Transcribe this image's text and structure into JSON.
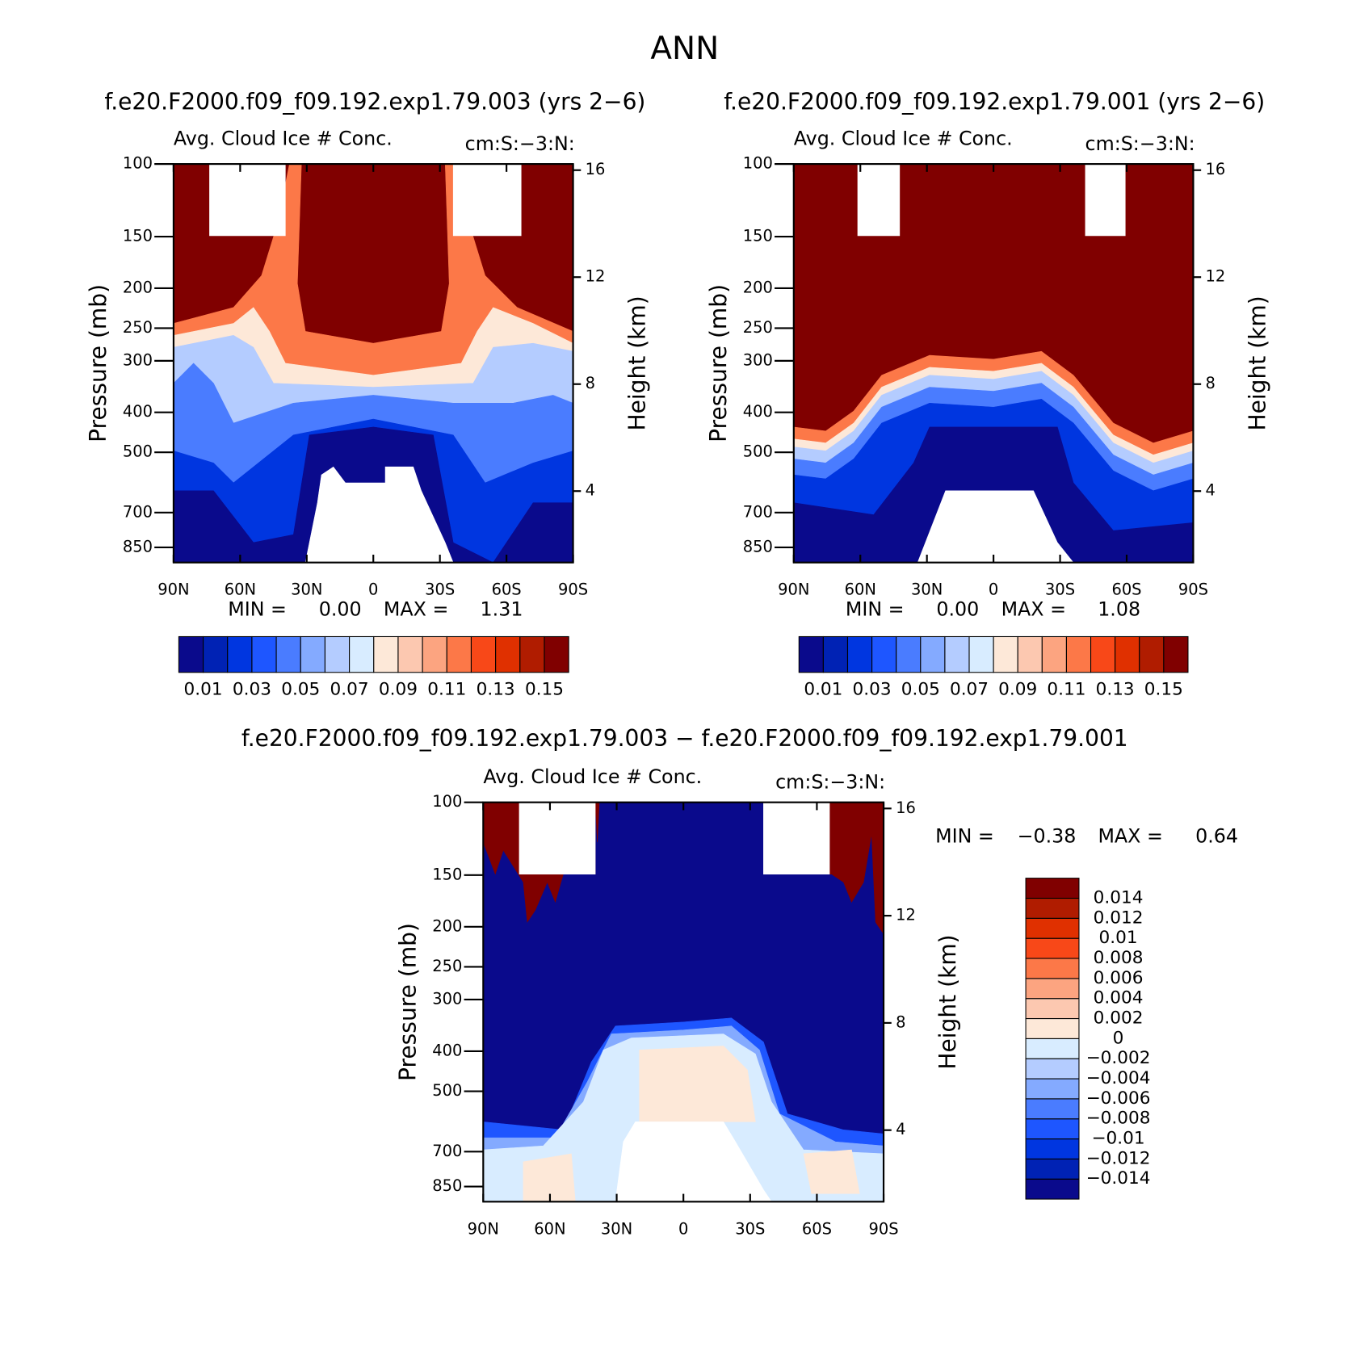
{
  "title": "ANN",
  "chart_data": [
    {
      "type": "contour",
      "subtitle": "f.e20.F2000.f09_f09.192.exp1.79.003 (yrs 2−6)",
      "title": "Avg. Cloud Ice # Conc.",
      "units": "cm:S:−3:N:",
      "ylabel": "Pressure (mb)",
      "y2label": "Height (km)",
      "xlim": [
        90,
        -90
      ],
      "xticks": [
        {
          "value": 90,
          "label": "90N"
        },
        {
          "value": 60,
          "label": "60N"
        },
        {
          "value": 30,
          "label": "30N"
        },
        0,
        {
          "value": -30,
          "label": "30S"
        },
        {
          "value": -60,
          "label": "60S"
        },
        {
          "value": -90,
          "label": "90S"
        }
      ],
      "ylim": [
        100,
        925
      ],
      "ylog": true,
      "yticks": [
        100,
        150,
        200,
        250,
        300,
        400,
        500,
        700,
        850
      ],
      "y2lim": [
        1.33,
        16.23
      ],
      "y2ticks": [
        4,
        8,
        12,
        16
      ],
      "stats": [
        {
          "name": "MIN =",
          "value": 0,
          "label": "0.00"
        },
        {
          "name": "MAX =",
          "value": 1.31
        }
      ],
      "colorbar": {
        "orientation": "horizontal",
        "lim": [
          0,
          0.16
        ],
        "ticks": [
          0.01,
          0.03,
          0.05,
          0.07,
          0.09,
          0.11,
          0.13,
          0.15
        ],
        "colors": [
          "#0a0a8c",
          "#0022b4",
          "#0036e0",
          "#1e56ff",
          "#4a7cff",
          "#84aaff",
          "#b4ccff",
          "#d8ecff",
          "#fde8d8",
          "#fcc8b0",
          "#fca480",
          "#fc7848",
          "#f84818",
          "#e03000",
          "#b01c00",
          "#800000"
        ]
      }
    },
    {
      "type": "contour",
      "subtitle": "f.e20.F2000.f09_f09.192.exp1.79.001 (yrs 2−6)",
      "title": "Avg. Cloud Ice # Conc.",
      "units": "cm:S:−3:N:",
      "ylabel": "Pressure (mb)",
      "y2label": "Height (km)",
      "xlim": [
        90,
        -90
      ],
      "xticks": [
        {
          "value": 90,
          "label": "90N"
        },
        {
          "value": 60,
          "label": "60N"
        },
        {
          "value": 30,
          "label": "30N"
        },
        0,
        {
          "value": -30,
          "label": "30S"
        },
        {
          "value": -60,
          "label": "60S"
        },
        {
          "value": -90,
          "label": "90S"
        }
      ],
      "ylim": [
        100,
        925
      ],
      "ylog": true,
      "yticks": [
        100,
        150,
        200,
        250,
        300,
        400,
        500,
        700,
        850
      ],
      "y2lim": [
        1.33,
        16.23
      ],
      "y2ticks": [
        4,
        8,
        12,
        16
      ],
      "stats": [
        {
          "name": "MIN =",
          "value": 0,
          "label": "0.00"
        },
        {
          "name": "MAX =",
          "value": 1.08
        }
      ],
      "colorbar": {
        "orientation": "horizontal",
        "lim": [
          0,
          0.16
        ],
        "ticks": [
          0.01,
          0.03,
          0.05,
          0.07,
          0.09,
          0.11,
          0.13,
          0.15
        ],
        "colors": [
          "#0a0a8c",
          "#0022b4",
          "#0036e0",
          "#1e56ff",
          "#4a7cff",
          "#84aaff",
          "#b4ccff",
          "#d8ecff",
          "#fde8d8",
          "#fcc8b0",
          "#fca480",
          "#fc7848",
          "#f84818",
          "#e03000",
          "#b01c00",
          "#800000"
        ]
      }
    },
    {
      "type": "contour",
      "subtitle": "f.e20.F2000.f09_f09.192.exp1.79.003 − f.e20.F2000.f09_f09.192.exp1.79.001",
      "title": "Avg. Cloud Ice # Conc.",
      "units": "cm:S:−3:N:",
      "ylabel": "Pressure (mb)",
      "y2label": "Height (km)",
      "xlim": [
        90,
        -90
      ],
      "xticks": [
        {
          "value": 90,
          "label": "90N"
        },
        {
          "value": 60,
          "label": "60N"
        },
        {
          "value": 30,
          "label": "30N"
        },
        0,
        {
          "value": -30,
          "label": "30S"
        },
        {
          "value": -60,
          "label": "60S"
        },
        {
          "value": -90,
          "label": "90S"
        }
      ],
      "ylim": [
        100,
        925
      ],
      "ylog": true,
      "yticks": [
        100,
        150,
        200,
        250,
        300,
        400,
        500,
        700,
        850
      ],
      "y2lim": [
        1.33,
        16.23
      ],
      "y2ticks": [
        4,
        8,
        12,
        16
      ],
      "stats": [
        {
          "name": "MIN =",
          "value": -0.38,
          "label": "−0.38"
        },
        {
          "name": "MAX =",
          "value": 0.64
        }
      ],
      "colorbar": {
        "orientation": "vertical",
        "lim": [
          -0.016,
          0.016
        ],
        "ticks": [
          0.014,
          0.012,
          0.01,
          0.008,
          0.006,
          0.004,
          0.002,
          0,
          {
            "value": -0.002,
            "label": "−0.002"
          },
          {
            "value": -0.004,
            "label": "−0.004"
          },
          {
            "value": -0.006,
            "label": "−0.006"
          },
          {
            "value": -0.008,
            "label": "−0.008"
          },
          {
            "value": -0.01,
            "label": "−0.01"
          },
          {
            "value": -0.012,
            "label": "−0.012"
          },
          {
            "value": -0.014,
            "label": "−0.014"
          }
        ],
        "colors": [
          "#0a0a8c",
          "#0022b4",
          "#0036e0",
          "#1e56ff",
          "#4a7cff",
          "#84aaff",
          "#b4ccff",
          "#d8ecff",
          "#fde8d8",
          "#fcc8b0",
          "#fca480",
          "#fc7848",
          "#f84818",
          "#e03000",
          "#b01c00",
          "#800000"
        ]
      }
    }
  ]
}
